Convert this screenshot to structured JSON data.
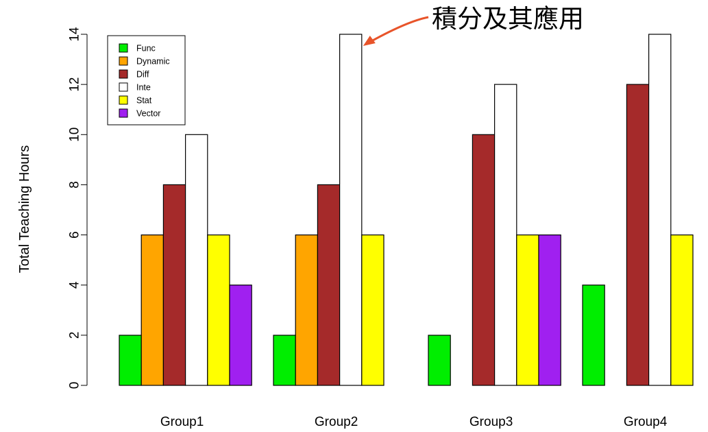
{
  "chart_data": {
    "type": "bar",
    "categories": [
      "Group1",
      "Group2",
      "Group3",
      "Group4"
    ],
    "series": [
      {
        "name": "Func",
        "color": "#00ee00",
        "values": [
          2,
          2,
          2,
          4
        ]
      },
      {
        "name": "Dynamic",
        "color": "#ffa500",
        "values": [
          6,
          6,
          0,
          0
        ]
      },
      {
        "name": "Diff",
        "color": "#a52a2a",
        "values": [
          8,
          8,
          10,
          12
        ]
      },
      {
        "name": "Inte",
        "color": "#ffffff",
        "values": [
          10,
          14,
          12,
          14
        ]
      },
      {
        "name": "Stat",
        "color": "#ffff00",
        "values": [
          6,
          6,
          6,
          6
        ]
      },
      {
        "name": "Vector",
        "color": "#a020f0",
        "values": [
          4,
          0,
          6,
          0
        ]
      }
    ],
    "title": "",
    "xlabel": "",
    "ylabel": "Total Teaching Hours",
    "ylim": [
      0,
      14
    ],
    "yticks": [
      "0",
      "2",
      "4",
      "6",
      "8",
      "10",
      "12",
      "14"
    ],
    "legend_position": "top-left",
    "grid": false,
    "annotation": {
      "text": "積分及其應用",
      "target_series": "Inte",
      "target_category": "Group2",
      "arrow_color": "#e8542a"
    }
  }
}
